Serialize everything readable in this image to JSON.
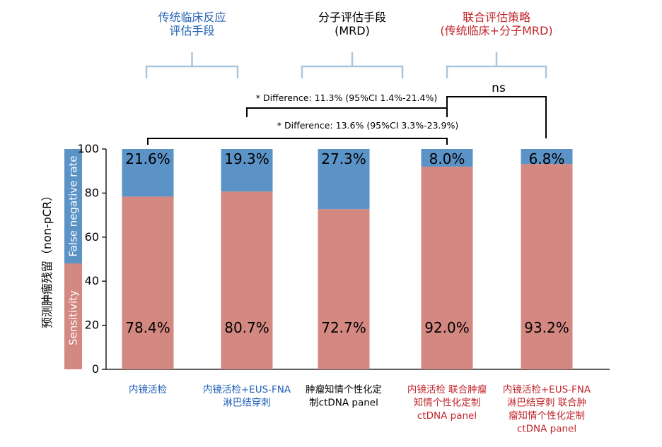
{
  "chart_data": {
    "type": "bar",
    "stacked": true,
    "ylabel": "预测肿瘤残留（non-pCR）",
    "ylim": [
      0,
      100
    ],
    "yticks": [
      0,
      20,
      40,
      60,
      80,
      100
    ],
    "legend_strip": [
      {
        "label": "False negative rate",
        "color": "#5b93c7"
      },
      {
        "label": "Sensitivity",
        "color": "#d38882"
      }
    ],
    "categories": [
      {
        "label_lines": [
          "内镜活检"
        ],
        "color": "#1f5fb4"
      },
      {
        "label_lines": [
          "内镜活检+EUS-FNA",
          "淋巴结穿刺"
        ],
        "color": "#1f5fb4"
      },
      {
        "label_lines": [
          "肿瘤知情个性化定",
          "制ctDNA panel"
        ],
        "color": "#000000"
      },
      {
        "label_lines": [
          "内镜活检 联合肿瘤",
          "知情个性化定制",
          "ctDNA panel"
        ],
        "color": "#c0262b"
      },
      {
        "label_lines": [
          "内镜活检+EUS-FNA",
          "淋巴结穿刺 联合肿",
          "瘤知情个性化定制",
          "ctDNA panel"
        ],
        "color": "#c0262b"
      }
    ],
    "series": [
      {
        "name": "Sensitivity",
        "color": "#d38882",
        "values": [
          78.4,
          80.7,
          72.7,
          92.0,
          93.2
        ],
        "labels": [
          "78.4%",
          "80.7%",
          "72.7%",
          "92.0%",
          "93.2%"
        ]
      },
      {
        "name": "False negative rate",
        "color": "#5b93c7",
        "values": [
          21.6,
          19.3,
          27.3,
          8.0,
          6.8
        ],
        "labels": [
          "21.6%",
          "19.3%",
          "27.3%",
          "8.0%",
          "6.8%"
        ]
      }
    ],
    "groups": [
      {
        "label_lines": [
          "传统临床反应",
          "评估手段"
        ],
        "color": "#1f5fb4",
        "from": 0,
        "to": 1
      },
      {
        "label_lines": [
          "分子评估手段",
          "(MRD)"
        ],
        "color": "#000000",
        "from": 2,
        "to": 2
      },
      {
        "label_lines": [
          "联合评估策略",
          "(传统临床+分子MRD)"
        ],
        "color": "#c0262b",
        "from": 3,
        "to": 4
      }
    ],
    "comparisons": [
      {
        "from": 1,
        "to": 3,
        "text": "* Difference: 11.3% (95%CI 1.4%-21.4%)"
      },
      {
        "from": 0,
        "to": 3,
        "text": "* Difference: 13.6% (95%CI 3.3%-23.9%)"
      },
      {
        "from": 3,
        "to": 4,
        "text": "ns"
      }
    ]
  }
}
